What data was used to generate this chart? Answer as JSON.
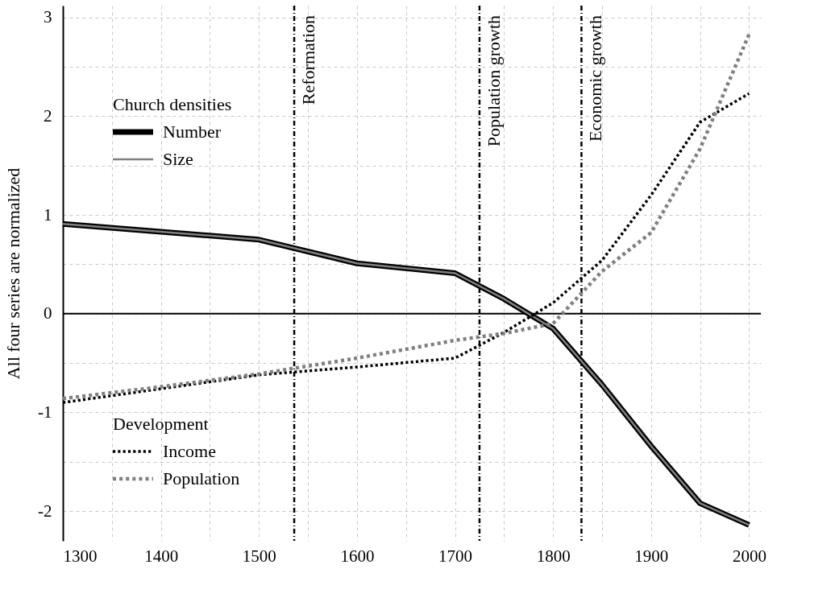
{
  "chart_data": {
    "type": "line",
    "ylabel": "All four series are normalized",
    "legend_title": [
      "Church densities",
      "Development"
    ],
    "legend": "left",
    "grid": true,
    "x": [
      1300,
      1400,
      1500,
      1600,
      1700,
      1750,
      1800,
      1850,
      1900,
      1950,
      2000
    ],
    "series": [
      {
        "name": "Number",
        "color": "#000000",
        "line_style": "solid",
        "values": [
          0.91,
          0.83,
          0.75,
          0.51,
          0.41,
          0.15,
          -0.15,
          -0.72,
          -1.34,
          -1.92,
          -2.14
        ]
      },
      {
        "name": "Size",
        "color": "#808080",
        "line_style": "solid",
        "values": [
          0.91,
          0.83,
          0.75,
          0.51,
          0.41,
          0.15,
          -0.15,
          -0.72,
          -1.34,
          -1.92,
          -2.14
        ]
      },
      {
        "name": "Income",
        "color": "#000000",
        "line_style": "dotted",
        "values": [
          -0.9,
          -0.76,
          -0.62,
          -0.54,
          -0.45,
          -0.19,
          0.11,
          0.54,
          1.2,
          1.94,
          2.23
        ]
      },
      {
        "name": "Population",
        "color": "#808080",
        "line_style": "dotted",
        "values": [
          -0.86,
          -0.74,
          -0.61,
          -0.45,
          -0.27,
          -0.2,
          -0.1,
          0.43,
          0.82,
          1.67,
          2.83
        ]
      }
    ],
    "xlim": [
      1300,
      2012
    ],
    "ylim": [
      -2.3,
      3.12
    ],
    "xticks": [
      1300,
      {
        "value": 1350,
        "label": null
      },
      1400,
      {
        "value": 1450,
        "label": null
      },
      1500,
      {
        "value": 1550,
        "label": null
      },
      1600,
      {
        "value": 1650,
        "label": null
      },
      1700,
      {
        "value": 1750,
        "label": null
      },
      1800,
      {
        "value": 1850,
        "label": null
      },
      1900,
      {
        "value": 1950,
        "label": null
      },
      2000
    ],
    "yticks": [
      -2,
      {
        "value": -1.5,
        "label": null
      },
      -1,
      {
        "value": -0.5,
        "label": null
      },
      0,
      {
        "value": 0.5,
        "label": null
      },
      1,
      {
        "value": 1.5,
        "label": null
      },
      2,
      {
        "value": 2.5,
        "label": null
      },
      3
    ],
    "ref_lines": [
      {
        "axis": "x",
        "value": 1536,
        "label": "Reformation",
        "line_style": "dashdot",
        "color": "#000000"
      },
      {
        "axis": "x",
        "value": 1725,
        "label": "Population growth",
        "line_style": "dashdot",
        "color": "#000000"
      },
      {
        "axis": "x",
        "value": 1829,
        "label": "Economic growth",
        "line_style": "dashdot",
        "color": "#000000"
      },
      {
        "axis": "y",
        "value": 0,
        "line_style": "solid",
        "color": "#000000"
      }
    ]
  }
}
